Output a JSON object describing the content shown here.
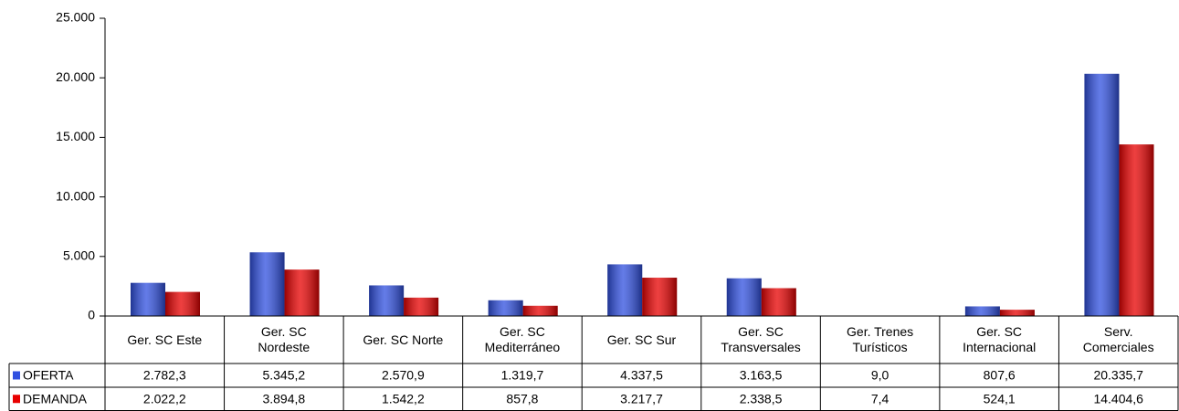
{
  "chart_data": {
    "type": "bar",
    "categories": [
      "Ger. SC Este",
      "Ger. SC\nNordeste",
      "Ger. SC Norte",
      "Ger. SC\nMediterráneo",
      "Ger. SC Sur",
      "Ger. SC\nTransversales",
      "Ger. Trenes\nTurísticos",
      "Ger. SC\nInternacional",
      "Serv.\nComerciales"
    ],
    "series": [
      {
        "name": "OFERTA",
        "color": "#3050e0",
        "values": [
          2782.3,
          5345.2,
          2570.9,
          1319.7,
          4337.5,
          3163.5,
          9.0,
          807.6,
          20335.7
        ],
        "value_labels": [
          "2.782,3",
          "5.345,2",
          "2.570,9",
          "1.319,7",
          "4.337,5",
          "3.163,5",
          "9,0",
          "807,6",
          "20.335,7"
        ]
      },
      {
        "name": "DEMANDA",
        "color": "#e80000",
        "values": [
          2022.2,
          3894.8,
          1542.2,
          857.8,
          3217.7,
          2338.5,
          7.4,
          524.1,
          14404.6
        ],
        "value_labels": [
          "2.022,2",
          "3.894,8",
          "1.542,2",
          "857,8",
          "3.217,7",
          "2.338,5",
          "7,4",
          "524,1",
          "14.404,6"
        ]
      }
    ],
    "ylim": [
      0,
      25000
    ],
    "yticks": [
      0,
      {
        "value": 5000,
        "label": "5.000"
      },
      {
        "value": 10000,
        "label": "10.000"
      },
      {
        "value": 15000,
        "label": "15.000"
      },
      {
        "value": 20000,
        "label": "20.000"
      },
      {
        "value": 25000,
        "label": "25.000"
      }
    ],
    "grid": false
  }
}
